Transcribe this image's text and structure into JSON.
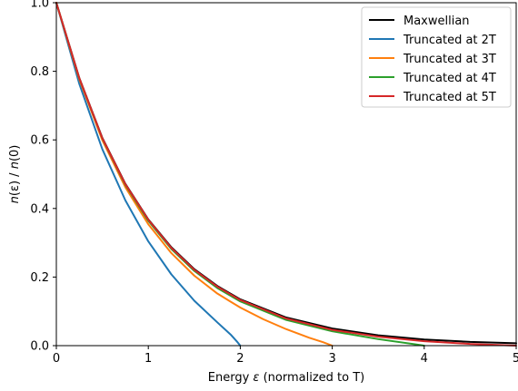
{
  "chart_data": {
    "type": "line",
    "title": "",
    "xlabel_prefix": "Energy ",
    "xlabel_symbol": "ε",
    "xlabel_suffix": " (normalized to T)",
    "ylabel_parts": [
      "n",
      "(ε) / ",
      "n",
      "(0)"
    ],
    "xlim": [
      0,
      5
    ],
    "ylim": [
      0,
      1
    ],
    "xticks": [
      0,
      1,
      2,
      3,
      4,
      5
    ],
    "yticks": [
      0.0,
      0.2,
      0.4,
      0.6,
      0.8,
      1.0
    ],
    "xtick_labels": [
      "0",
      "1",
      "2",
      "3",
      "4",
      "5"
    ],
    "ytick_labels": [
      "0.0",
      "0.2",
      "0.4",
      "0.6",
      "0.8",
      "1.0"
    ],
    "grid": false,
    "legend_position": "top-right",
    "series": [
      {
        "name": "Maxwellian",
        "color": "#000000",
        "x": [
          0,
          0.25,
          0.5,
          0.75,
          1.0,
          1.25,
          1.5,
          1.75,
          2.0,
          2.5,
          3.0,
          3.5,
          4.0,
          4.5,
          5.0
        ],
        "y": [
          1.0,
          0.78,
          0.606,
          0.472,
          0.368,
          0.287,
          0.223,
          0.174,
          0.135,
          0.082,
          0.05,
          0.03,
          0.018,
          0.011,
          0.007
        ]
      },
      {
        "name": "Truncated at 2T",
        "color": "#1f77b4",
        "x": [
          0,
          0.25,
          0.5,
          0.75,
          1.0,
          1.25,
          1.5,
          1.75,
          1.9,
          1.97,
          2.0
        ],
        "y": [
          1.0,
          0.763,
          0.573,
          0.424,
          0.304,
          0.208,
          0.131,
          0.068,
          0.031,
          0.01,
          0.0
        ]
      },
      {
        "name": "Truncated at 3T",
        "color": "#ff7f0e",
        "x": [
          0,
          0.25,
          0.5,
          0.75,
          1.0,
          1.25,
          1.5,
          1.75,
          2.0,
          2.25,
          2.5,
          2.75,
          2.9,
          3.0
        ],
        "y": [
          1.0,
          0.776,
          0.599,
          0.462,
          0.354,
          0.27,
          0.204,
          0.152,
          0.111,
          0.077,
          0.048,
          0.023,
          0.01,
          0.0
        ]
      },
      {
        "name": "Truncated at 4T",
        "color": "#2ca02c",
        "x": [
          0,
          0.25,
          0.5,
          0.75,
          1.0,
          1.25,
          1.5,
          1.75,
          2.0,
          2.5,
          3.0,
          3.5,
          3.9,
          4.0
        ],
        "y": [
          1.0,
          0.779,
          0.604,
          0.469,
          0.364,
          0.282,
          0.218,
          0.168,
          0.129,
          0.075,
          0.042,
          0.019,
          0.004,
          0.0
        ]
      },
      {
        "name": "Truncated at 5T",
        "color": "#d62728",
        "x": [
          0,
          0.25,
          0.5,
          0.75,
          1.0,
          1.25,
          1.5,
          1.75,
          2.0,
          2.5,
          3.0,
          3.5,
          4.0,
          4.5,
          5.0
        ],
        "y": [
          1.0,
          0.78,
          0.605,
          0.471,
          0.367,
          0.285,
          0.221,
          0.172,
          0.133,
          0.079,
          0.046,
          0.026,
          0.013,
          0.005,
          0.0
        ]
      }
    ]
  }
}
